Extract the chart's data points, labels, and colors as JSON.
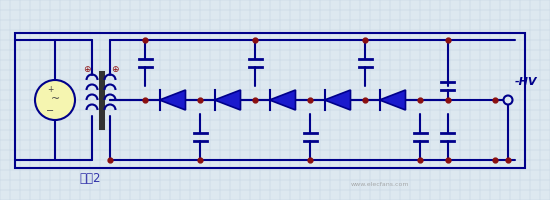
{
  "bg_color": "#dde8f0",
  "grid_color": "#c0cfe0",
  "line_color": "#00008B",
  "dot_color": "#8B1010",
  "diode_color": "#1a1acd",
  "text_color": "#00008B",
  "hv_color": "#00008B",
  "label_text": "电路2",
  "hv_label": "-HV",
  "fig_width": 5.5,
  "fig_height": 2.0,
  "dpi": 100
}
